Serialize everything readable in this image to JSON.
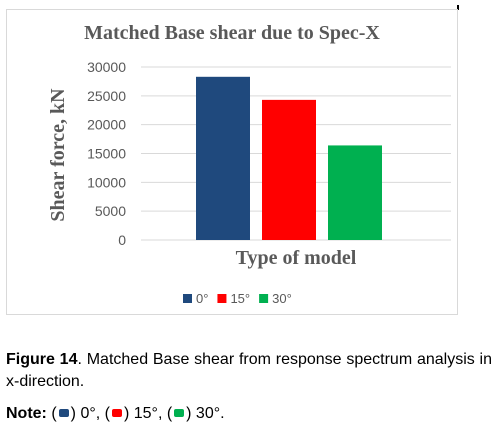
{
  "chart_data": {
    "type": "bar",
    "title": "Matched Base shear due to Spec-X",
    "xlabel": "Type of model",
    "ylabel": "Shear force, kN",
    "ylim": [
      0,
      30000
    ],
    "yticks": [
      0,
      5000,
      10000,
      15000,
      20000,
      25000,
      30000
    ],
    "grid": true,
    "legend_position": "bottom",
    "series": [
      {
        "name": "0°",
        "color": "#1f497d",
        "value": 28300
      },
      {
        "name": "15°",
        "color": "#ff0000",
        "value": 24300
      },
      {
        "name": "30°",
        "color": "#00b050",
        "value": 16400
      }
    ]
  },
  "caption": {
    "label": "Figure 14",
    "text": ". Matched Base shear from response spectrum analysis in x-direction."
  },
  "note": {
    "label": "Note:",
    "items": [
      {
        "color": "#1f497d",
        "text": ") 0°, ("
      },
      {
        "color": "#ff0000",
        "text": ") 15°, ("
      },
      {
        "color": "#00b050",
        "text": ") 30°."
      }
    ],
    "open": "("
  }
}
